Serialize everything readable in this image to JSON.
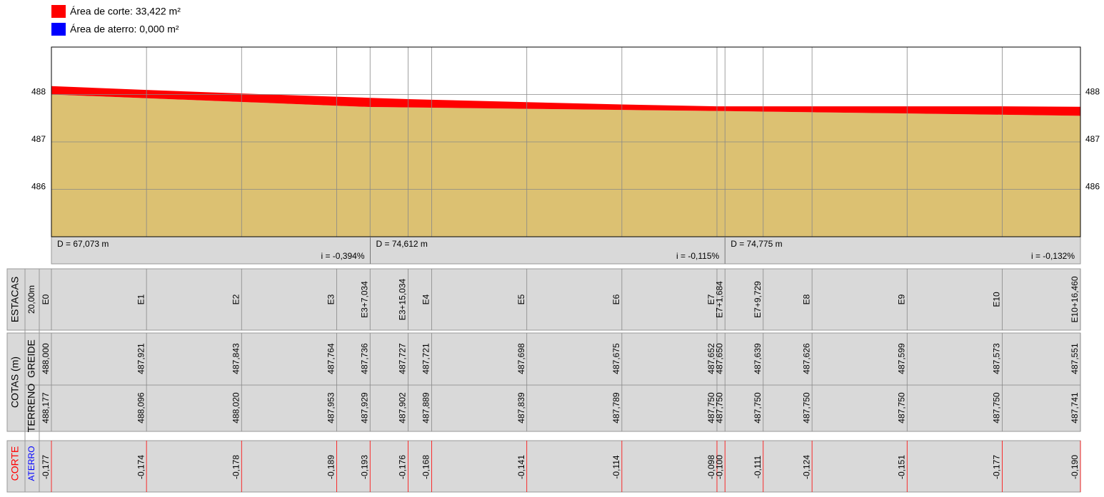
{
  "legend": [
    {
      "label": "Área de corte: 33,422 m²",
      "color": "#ff0000"
    },
    {
      "label": "Área de aterro: 0,000 m²",
      "color": "#0000ff"
    }
  ],
  "profile": {
    "ylim": [
      485,
      489
    ],
    "yticks": [
      488,
      487,
      486
    ],
    "terrain_color": "#dcc172",
    "cut_color": "#ff0000"
  },
  "segments": [
    {
      "length": "D = 67,073 m",
      "grade": "i = -0,394%"
    },
    {
      "length": "D = 74,612 m",
      "grade": "i = -0,115%"
    },
    {
      "length": "D = 74,775 m",
      "grade": "i = -0,132%"
    }
  ],
  "headers": {
    "stations": "ESTACAS",
    "interval": "20,00m",
    "elevations": "COTAS (m)",
    "grade": "GREIDE",
    "terrain": "TERRENO",
    "cut": "CORTE",
    "fill": "ATERRO"
  },
  "stations": [
    {
      "label": "E0",
      "greide": "488,000",
      "terreno": "488,177",
      "corte": "-0,177"
    },
    {
      "label": "E1",
      "greide": "487,921",
      "terreno": "488,096",
      "corte": "-0,174"
    },
    {
      "label": "E2",
      "greide": "487,843",
      "terreno": "488,020",
      "corte": "-0,178"
    },
    {
      "label": "E3",
      "greide": "487,764",
      "terreno": "487,953",
      "corte": "-0,189"
    },
    {
      "label": "E3+7,034",
      "greide": "487,736",
      "terreno": "487,929",
      "corte": "-0,193"
    },
    {
      "label": "E3+15,034",
      "greide": "487,727",
      "terreno": "487,902",
      "corte": "-0,176"
    },
    {
      "label": "E4",
      "greide": "487,721",
      "terreno": "487,889",
      "corte": "-0,168"
    },
    {
      "label": "E5",
      "greide": "487,698",
      "terreno": "487,839",
      "corte": "-0,141"
    },
    {
      "label": "E6",
      "greide": "487,675",
      "terreno": "487,789",
      "corte": "-0,114"
    },
    {
      "label": "E7",
      "greide": "487,652",
      "terreno": "487,750",
      "corte": "-0,098"
    },
    {
      "label": "E7+1,684",
      "greide": "487,650",
      "terreno": "487,750",
      "corte": "-0,100"
    },
    {
      "label": "E7+9,729",
      "greide": "487,639",
      "terreno": "487,750",
      "corte": "-0,111"
    },
    {
      "label": "E8",
      "greide": "487,626",
      "terreno": "487,750",
      "corte": "-0,124"
    },
    {
      "label": "E9",
      "greide": "487,599",
      "terreno": "487,750",
      "corte": "-0,151"
    },
    {
      "label": "E10",
      "greide": "487,573",
      "terreno": "487,750",
      "corte": "-0,177"
    },
    {
      "label": "E10+16,460",
      "greide": "487,551",
      "terreno": "487,741",
      "corte": "-0,190"
    }
  ]
}
